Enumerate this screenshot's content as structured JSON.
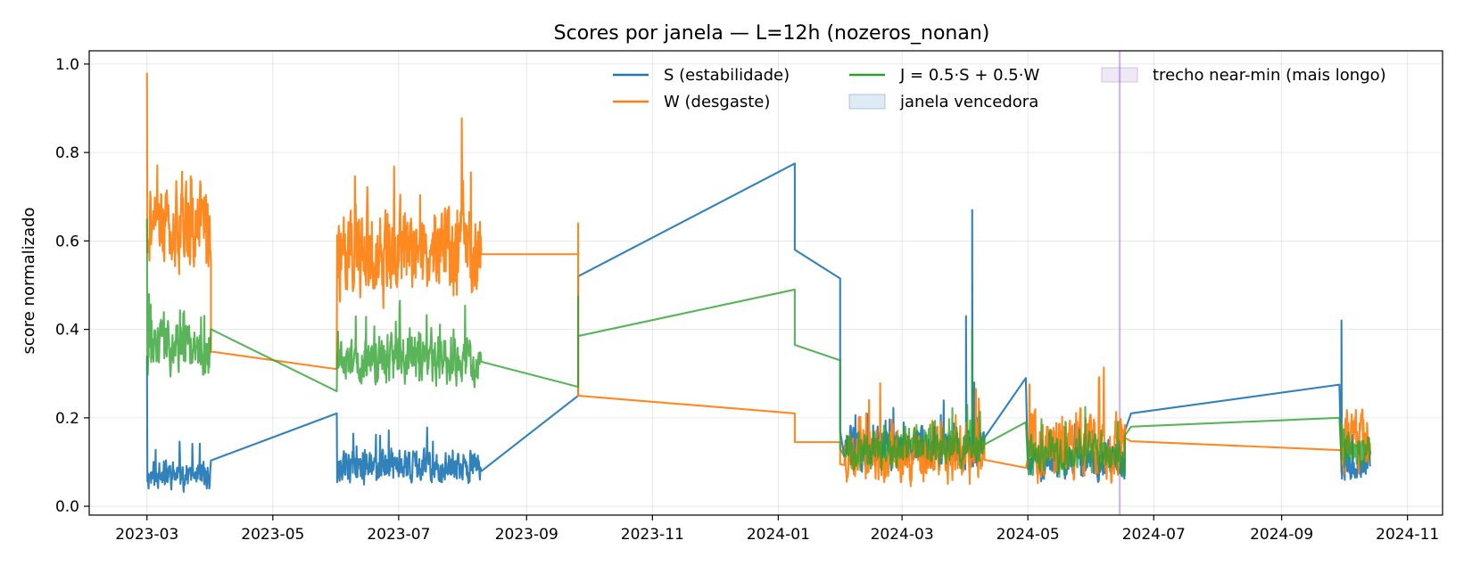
{
  "chart_data": {
    "type": "line",
    "title": "Scores por janela — L=12h  (nozeros_nonan)",
    "xlabel": "",
    "ylabel": "score normalizado",
    "x_type": "date",
    "xlim": [
      "2023-02-01",
      "2024-11-18"
    ],
    "ylim": [
      -0.02,
      1.03
    ],
    "x_ticks": [
      "2023-03",
      "2023-05",
      "2023-07",
      "2023-09",
      "2023-11",
      "2024-01",
      "2024-03",
      "2024-05",
      "2024-07",
      "2024-09",
      "2024-11"
    ],
    "x_tick_dates": [
      "2023-03-01",
      "2023-05-01",
      "2023-07-01",
      "2023-09-01",
      "2023-11-01",
      "2024-01-01",
      "2024-03-01",
      "2024-05-01",
      "2024-07-01",
      "2024-09-01",
      "2024-11-01"
    ],
    "y_ticks": [
      "0.0",
      "0.2",
      "0.4",
      "0.6",
      "0.8",
      "1.0"
    ],
    "y_tick_values": [
      0.0,
      0.2,
      0.4,
      0.6,
      0.8,
      1.0
    ],
    "grid": true,
    "legend_position": "top-right",
    "legend": [
      {
        "label": "S (estabilidade)",
        "kind": "line",
        "color": "#1f77b4"
      },
      {
        "label": "W (desgaste)",
        "kind": "line",
        "color": "#ff7f0e"
      },
      {
        "label": "J = 0.5·S + 0.5·W",
        "kind": "line",
        "color": "#2ca02c"
      },
      {
        "label": "janela vencedora",
        "kind": "patch",
        "color": "#1f77b4"
      },
      {
        "label": "trecho near-min (mais longo)",
        "kind": "patch",
        "color": "#9467bd"
      }
    ],
    "highlight_windows": [
      {
        "name": "trecho near-min (mais longo)",
        "start": "2024-06-14",
        "end": "2024-06-15",
        "color": "#9467bd"
      }
    ],
    "series": [
      {
        "name": "S (estabilidade)",
        "color": "#1f77b4",
        "segments": [
          {
            "start": "2023-03-01",
            "end": "2023-04-01",
            "base": 0.07,
            "amp": 0.03,
            "seed": 11,
            "first": 0.34
          },
          {
            "start": "2023-06-01",
            "end": "2023-08-10",
            "base": 0.09,
            "amp": 0.035,
            "seed": 12,
            "first": 0.21
          },
          {
            "start": "2024-02-02",
            "end": "2024-04-10",
            "base": 0.13,
            "amp": 0.04,
            "seed": 13
          },
          {
            "start": "2024-05-01",
            "end": "2024-06-17",
            "base": 0.1,
            "amp": 0.035,
            "seed": 14
          },
          {
            "start": "2024-09-30",
            "end": "2024-10-14",
            "base": 0.09,
            "amp": 0.03,
            "seed": 15
          }
        ],
        "points": [
          {
            "x": "2023-09-26",
            "y": 0.25
          },
          {
            "x": "2023-09-26",
            "y": 0.52
          },
          {
            "x": "2024-01-09",
            "y": 0.775
          },
          {
            "x": "2024-01-09",
            "y": 0.58
          },
          {
            "x": "2024-01-31",
            "y": 0.515
          },
          {
            "x": "2024-01-31",
            "y": 0.17
          },
          {
            "x": "2024-04-01",
            "y": 0.43
          },
          {
            "x": "2024-04-04",
            "y": 0.49
          },
          {
            "x": "2024-04-04",
            "y": 0.67
          },
          {
            "x": "2024-04-05",
            "y": 0.28
          },
          {
            "x": "2024-04-30",
            "y": 0.29
          },
          {
            "x": "2024-06-17",
            "y": 0.17
          },
          {
            "x": "2024-06-20",
            "y": 0.21
          },
          {
            "x": "2024-09-29",
            "y": 0.275
          },
          {
            "x": "2024-09-30",
            "y": 0.42
          }
        ]
      },
      {
        "name": "W (desgaste)",
        "color": "#ff7f0e",
        "segments": [
          {
            "start": "2023-03-01",
            "end": "2023-04-01",
            "base": 0.64,
            "amp": 0.09,
            "seed": 21,
            "first": 0.98
          },
          {
            "start": "2023-06-01",
            "end": "2023-08-10",
            "base": 0.57,
            "amp": 0.09,
            "seed": 22,
            "first": 0.31
          },
          {
            "start": "2024-02-02",
            "end": "2024-04-10",
            "base": 0.12,
            "amp": 0.06,
            "seed": 23
          },
          {
            "start": "2024-05-01",
            "end": "2024-06-17",
            "base": 0.14,
            "amp": 0.07,
            "seed": 24
          },
          {
            "start": "2024-09-30",
            "end": "2024-10-14",
            "base": 0.15,
            "amp": 0.06,
            "seed": 25
          }
        ],
        "points": [
          {
            "x": "2023-04-01",
            "y": 0.35
          },
          {
            "x": "2023-06-01",
            "y": 0.35
          },
          {
            "x": "2023-08-10",
            "y": 0.57
          },
          {
            "x": "2023-09-26",
            "y": 0.57
          },
          {
            "x": "2023-09-26",
            "y": 0.64
          },
          {
            "x": "2023-09-26",
            "y": 0.25
          },
          {
            "x": "2024-01-09",
            "y": 0.21
          },
          {
            "x": "2024-01-09",
            "y": 0.145
          },
          {
            "x": "2024-01-31",
            "y": 0.145
          },
          {
            "x": "2024-01-31",
            "y": 0.095
          },
          {
            "x": "2024-04-10",
            "y": 0.105
          },
          {
            "x": "2024-04-30",
            "y": 0.087
          },
          {
            "x": "2024-06-17",
            "y": 0.155
          },
          {
            "x": "2024-06-20",
            "y": 0.147
          },
          {
            "x": "2024-09-29",
            "y": 0.127
          }
        ]
      },
      {
        "name": "J = 0.5·S + 0.5·W",
        "color": "#2ca02c",
        "segments": [
          {
            "start": "2023-03-01",
            "end": "2023-04-01",
            "base": 0.36,
            "amp": 0.05,
            "seed": 31,
            "first": 0.65
          },
          {
            "start": "2023-06-01",
            "end": "2023-08-10",
            "base": 0.33,
            "amp": 0.05,
            "seed": 32,
            "first": 0.26
          },
          {
            "start": "2024-02-02",
            "end": "2024-04-10",
            "base": 0.13,
            "amp": 0.04,
            "seed": 33
          },
          {
            "start": "2024-05-01",
            "end": "2024-06-17",
            "base": 0.12,
            "amp": 0.04,
            "seed": 34
          },
          {
            "start": "2024-09-30",
            "end": "2024-10-14",
            "base": 0.12,
            "amp": 0.035,
            "seed": 35
          }
        ],
        "points": [
          {
            "x": "2023-09-26",
            "y": 0.27
          },
          {
            "x": "2023-09-26",
            "y": 0.475
          },
          {
            "x": "2023-09-26",
            "y": 0.385
          },
          {
            "x": "2024-01-09",
            "y": 0.49
          },
          {
            "x": "2024-01-09",
            "y": 0.365
          },
          {
            "x": "2024-01-31",
            "y": 0.33
          },
          {
            "x": "2024-01-31",
            "y": 0.13
          },
          {
            "x": "2024-04-04",
            "y": 0.4
          },
          {
            "x": "2024-04-05",
            "y": 0.195
          },
          {
            "x": "2024-04-30",
            "y": 0.19
          },
          {
            "x": "2024-06-17",
            "y": 0.16
          },
          {
            "x": "2024-06-20",
            "y": 0.18
          },
          {
            "x": "2024-09-29",
            "y": 0.2
          }
        ]
      }
    ]
  }
}
